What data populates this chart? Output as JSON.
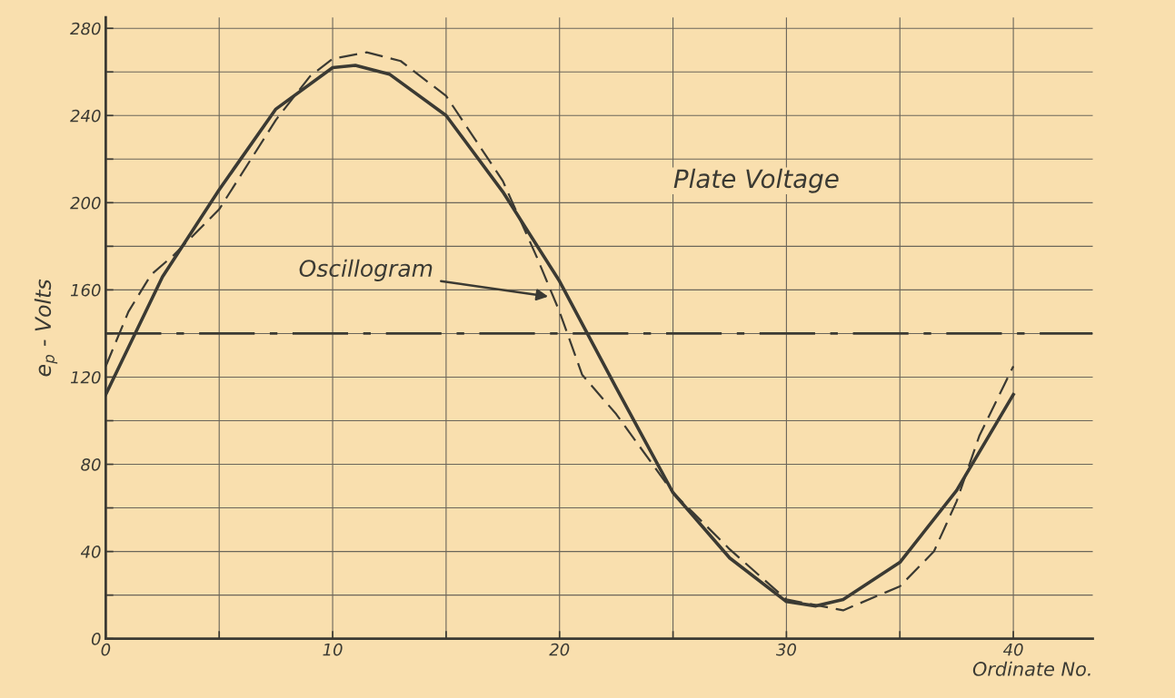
{
  "chart_data": {
    "type": "line",
    "xlabel": "Ordinate No.",
    "ylabel": "e$_{p}$ - Volts",
    "series": [
      {
        "color": "#3b3a33",
        "line_style": "solid",
        "x": [
          0,
          2.5,
          5,
          7.5,
          10,
          11,
          12.5,
          15,
          17.5,
          20,
          22.5,
          25,
          27.5,
          30,
          31.3,
          32.5,
          35,
          37.5,
          40
        ],
        "values": [
          112,
          166,
          206,
          243,
          262,
          263,
          259,
          240,
          205,
          164,
          115,
          67,
          37,
          17,
          15,
          18,
          35,
          68,
          112
        ]
      },
      {
        "color": "#3b3a33",
        "line_style": "dashed",
        "x": [
          0,
          1,
          2,
          3,
          5,
          7.5,
          9,
          10,
          11.5,
          13,
          15,
          17.5,
          19,
          20,
          21,
          22.5,
          25,
          27.5,
          30,
          32.5,
          35,
          36.5,
          37.5,
          38.5,
          40
        ],
        "values": [
          125,
          150,
          167,
          176,
          197,
          238,
          258,
          266,
          269,
          265,
          249,
          210,
          175,
          150,
          121,
          103,
          67,
          41,
          18,
          13,
          24,
          40,
          63,
          93,
          125
        ]
      }
    ],
    "ref_lines": [
      {
        "axis": "y",
        "value": 140,
        "color": "#3b3a33",
        "line_style": "dashdot"
      }
    ],
    "annotations": [
      {
        "text": "Oscillogram",
        "x": 19.5,
        "y": 157
      },
      "Plate Voltage"
    ],
    "xlim": [
      0,
      43.5
    ],
    "ylim": [
      0,
      285
    ],
    "xticks": [
      0,
      {
        "value": 5,
        "label": null
      },
      10,
      {
        "value": 15,
        "label": null
      },
      20,
      {
        "value": 25,
        "label": null
      },
      30,
      {
        "value": 35,
        "label": null
      },
      40
    ],
    "yticks": [
      0,
      {
        "value": 20,
        "label": null
      },
      40,
      {
        "value": 60,
        "label": null
      },
      80,
      {
        "value": 100,
        "label": null
      },
      120,
      {
        "value": 140,
        "label": null
      },
      160,
      {
        "value": 180,
        "label": null
      },
      200,
      {
        "value": 220,
        "label": null
      },
      240,
      {
        "value": 260,
        "label": null
      },
      280
    ],
    "grid": true,
    "marker": "none"
  }
}
